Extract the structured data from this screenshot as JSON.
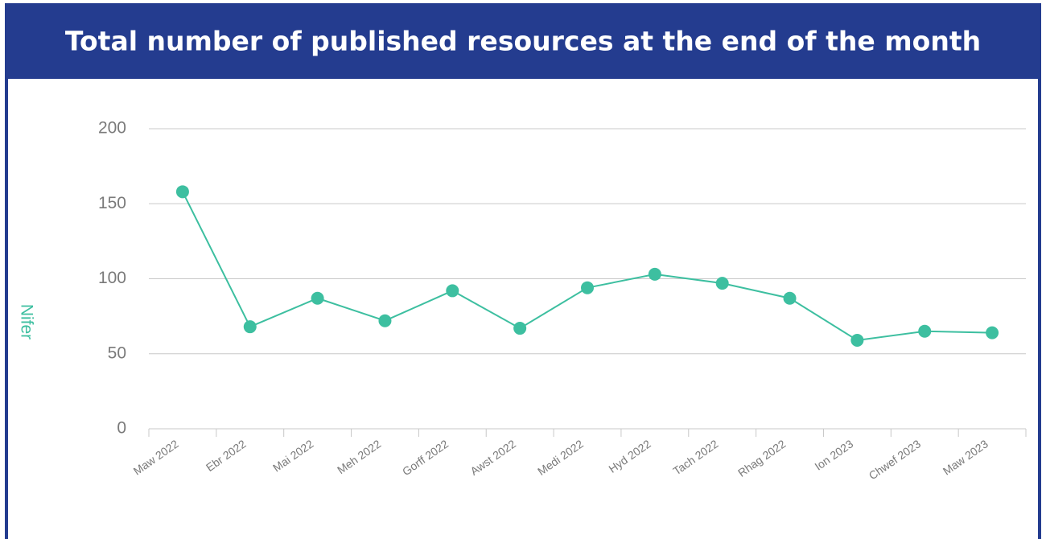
{
  "chart_data": {
    "type": "line",
    "title": "Total number of published resources at the end of the month",
    "y_label": "Nifer",
    "categories": [
      "Maw 2022",
      "Ebr 2022",
      "Mai 2022",
      "Meh 2022",
      "Gorff 2022",
      "Awst 2022",
      "Medi 2022",
      "Hyd 2022",
      "Tach 2022",
      "Rhag 2022",
      "Ion 2023",
      "Chwef 2023",
      "Maw 2023"
    ],
    "series": [
      {
        "name": "Nifer",
        "color": "#3dbfa0",
        "values": [
          158,
          68,
          87,
          72,
          92,
          67,
          94,
          103,
          97,
          87,
          59,
          65,
          64
        ]
      }
    ],
    "ylim": [
      0,
      200
    ],
    "yticks": [
      0,
      50,
      100,
      150,
      200
    ],
    "grid": true
  }
}
